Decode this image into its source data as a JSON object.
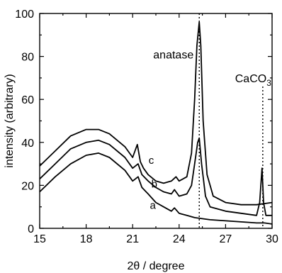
{
  "chart_data": {
    "type": "line",
    "xlabel": "2θ / degree",
    "ylabel": "intensity (arbitrary)",
    "xlim": [
      15,
      30
    ],
    "ylim": [
      0,
      100
    ],
    "x_ticks": [
      15,
      18,
      21,
      24,
      27,
      30
    ],
    "y_ticks": [
      0,
      20,
      40,
      60,
      80,
      100
    ],
    "grid": false,
    "annotations": [
      {
        "text": "anatase",
        "x": 25.3
      },
      {
        "text": "CaCO",
        "subscript": "3",
        "x": 29.4
      }
    ],
    "reference_lines": [
      25.3,
      29.4
    ],
    "series": [
      {
        "name": "a",
        "x": [
          15,
          16,
          17,
          18,
          18.8,
          19.5,
          20.5,
          21.0,
          21.35,
          21.6,
          22.0,
          22.5,
          23.0,
          23.5,
          23.7,
          24.0,
          24.5,
          25.0,
          25.5,
          26,
          27,
          28,
          29,
          29.5,
          30
        ],
        "y": [
          17,
          24,
          30,
          34,
          35,
          33,
          27,
          22,
          24,
          19,
          16,
          12,
          10,
          8,
          9.5,
          7,
          6,
          5,
          4.5,
          4,
          3.5,
          3,
          2.5,
          2.5,
          2
        ]
      },
      {
        "name": "b",
        "x": [
          15,
          16,
          17,
          18,
          18.8,
          19.5,
          20.5,
          21.0,
          21.35,
          21.6,
          22.0,
          22.5,
          23.0,
          23.5,
          23.7,
          24.0,
          24.5,
          24.8,
          25.0,
          25.2,
          25.3,
          25.45,
          25.7,
          26.0,
          26.5,
          27,
          28,
          29,
          29.2,
          29.35,
          29.45,
          29.6,
          30
        ],
        "y": [
          23,
          30,
          37,
          40,
          41,
          39,
          33,
          28,
          30,
          25,
          22,
          19,
          17,
          16,
          18,
          15,
          16,
          20,
          30,
          40,
          42,
          30,
          15,
          10,
          9,
          8,
          7,
          6,
          12,
          28,
          12,
          6,
          6
        ]
      },
      {
        "name": "c",
        "x": [
          15,
          16,
          17,
          18,
          18.8,
          19.5,
          20.5,
          21.0,
          21.3,
          21.5,
          21.7,
          22.0,
          22.5,
          23.0,
          23.5,
          23.8,
          24.0,
          24.5,
          24.8,
          25.0,
          25.15,
          25.3,
          25.4,
          25.55,
          25.8,
          26.2,
          27,
          28,
          29,
          30
        ],
        "y": [
          29,
          36,
          43,
          46,
          46,
          44,
          38,
          33,
          39,
          31,
          28,
          25,
          22,
          21,
          22,
          24,
          22,
          24,
          35,
          60,
          85,
          96,
          85,
          50,
          25,
          15,
          12,
          11,
          11,
          12
        ]
      }
    ]
  }
}
